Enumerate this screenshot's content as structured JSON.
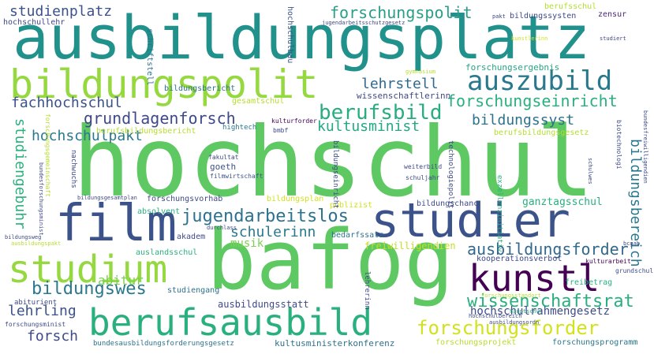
{
  "words": [
    {
      "text": "hochschul",
      "color": "#5ec962"
    },
    {
      "text": "ausbildungsplatz",
      "color": "#21918c"
    },
    {
      "text": "bafog",
      "color": "#5ec962"
    },
    {
      "text": "bildungspolit",
      "color": "#95d840"
    },
    {
      "text": "studier",
      "color": "#3b528b"
    },
    {
      "text": "film",
      "color": "#3b528b"
    },
    {
      "text": "studium",
      "color": "#95d840"
    },
    {
      "text": "kunstl",
      "color": "#440154"
    },
    {
      "text": "berufsausbild",
      "color": "#2ab07f"
    },
    {
      "text": "auszubild",
      "color": "#2a788e"
    },
    {
      "text": "berufsbild",
      "color": "#27ad81"
    },
    {
      "text": "forschungsforder",
      "color": "#d2e21b"
    },
    {
      "text": "forschungseinricht",
      "color": "#2ab07f"
    },
    {
      "text": "jugendarbeitslos",
      "color": "#2c728e"
    },
    {
      "text": "bildungswes",
      "color": "#2a788e"
    },
    {
      "text": "wissenschaftsrat",
      "color": "#2ab07f"
    },
    {
      "text": "ausbildungsforder",
      "color": "#31688e"
    },
    {
      "text": "forschungspolit",
      "color": "#2a9e89"
    },
    {
      "text": "grundlagenforsch",
      "color": "#3e4a89"
    },
    {
      "text": "kultusminist",
      "color": "#22a884"
    },
    {
      "text": "bildungssyst",
      "color": "#2c728e"
    },
    {
      "text": "schulerinn",
      "color": "#2a788e"
    },
    {
      "text": "studienplatz",
      "color": "#3b528b"
    },
    {
      "text": "fachhochschul",
      "color": "#3b528b"
    },
    {
      "text": "lehrstell",
      "color": "#31688e"
    },
    {
      "text": "hochschulpakt",
      "color": "#2a788e"
    },
    {
      "text": "studiengebuhr",
      "color": "#2ab07f"
    },
    {
      "text": "bildungsbereich",
      "color": "#2a788e"
    },
    {
      "text": "abitur",
      "color": "#7ad151"
    },
    {
      "text": "lehrling",
      "color": "#3b528b"
    },
    {
      "text": "forsch",
      "color": "#3e4a89"
    },
    {
      "text": "musik",
      "color": "#7ad151"
    },
    {
      "text": "hochschulrahmengesetz",
      "color": "#3e4a89"
    },
    {
      "text": "freiwilligendien",
      "color": "#c2df23"
    },
    {
      "text": "ausbildungsstatt",
      "color": "#3e4a89"
    },
    {
      "text": "bundesausbildungsforderungsgesetz",
      "color": "#2c728e"
    },
    {
      "text": "kultusministerkonferenz",
      "color": "#2c728e"
    },
    {
      "text": "forschungsprojekt",
      "color": "#b5de2b"
    },
    {
      "text": "forschungsprogramm",
      "color": "#2a788e"
    },
    {
      "text": "forschungsergebnis",
      "color": "#22a884"
    },
    {
      "text": "bildungssysten",
      "color": "#3e4a89"
    },
    {
      "text": "berufsschul",
      "color": "#b5de2b"
    },
    {
      "text": "zensur",
      "color": "#482878"
    },
    {
      "text": "wissenschaftlerinn",
      "color": "#3e4a89"
    },
    {
      "text": "hochschullehr",
      "color": "#3e4a89"
    },
    {
      "text": "hochschulbau",
      "color": "#3b528b"
    },
    {
      "text": "schriftstell",
      "color": "#2c728e"
    },
    {
      "text": "bildungsbericht",
      "color": "#2c728e"
    },
    {
      "text": "gesamtschul",
      "color": "#b5de2b"
    },
    {
      "text": "berufsbildungsbericht",
      "color": "#b5de2b"
    },
    {
      "text": "berufsbildungsgesetz",
      "color": "#b5de2b"
    },
    {
      "text": "hightech",
      "color": "#2a788e"
    },
    {
      "text": "kulturforder",
      "color": "#440154"
    },
    {
      "text": "bmbf",
      "color": "#3e4a89"
    },
    {
      "text": "fakultat",
      "color": "#3e4a89"
    },
    {
      "text": "goeth",
      "color": "#3b528b"
    },
    {
      "text": "filmwirtschaft",
      "color": "#3b528b"
    },
    {
      "text": "nachwuchs",
      "color": "#3e4a89"
    },
    {
      "text": "forschungsgemeinschaft",
      "color": "#b5de2b"
    },
    {
      "text": "forschungsvorhab",
      "color": "#3e4a89"
    },
    {
      "text": "bildungsplan",
      "color": "#d2e21b"
    },
    {
      "text": "publizist",
      "color": "#d2e21b"
    },
    {
      "text": "bildungschanc",
      "color": "#3e4a89"
    },
    {
      "text": "ganztagsschul",
      "color": "#2ab07f"
    },
    {
      "text": "bedarfssatz",
      "color": "#2c728e"
    },
    {
      "text": "absolvent",
      "color": "#2ab07f"
    },
    {
      "text": "akadem",
      "color": "#3e4a89"
    },
    {
      "text": "auslandsschul",
      "color": "#2ab07f"
    },
    {
      "text": "studiengang",
      "color": "#2c728e"
    },
    {
      "text": "abiturient",
      "color": "#3e4a89"
    },
    {
      "text": "kooperationsverbot",
      "color": "#3e4a89"
    },
    {
      "text": "kulturarbeit",
      "color": "#440154"
    },
    {
      "text": "grundschul",
      "color": "#3e4a89"
    },
    {
      "text": "freibetrag",
      "color": "#2ab07f"
    },
    {
      "text": "bcgab",
      "color": "#3e4a89"
    },
    {
      "text": "bildungsgesamtplan",
      "color": "#3e4a89"
    },
    {
      "text": "bildungsweg",
      "color": "#3e4a89"
    },
    {
      "text": "forschungsminist",
      "color": "#3e4a89"
    },
    {
      "text": "lehrerinn",
      "color": "#3e4a89"
    },
    {
      "text": "weiterbild",
      "color": "#3e4a89"
    },
    {
      "text": "schuljahr",
      "color": "#3e4a89"
    },
    {
      "text": "technologiepolit",
      "color": "#3e4a89"
    },
    {
      "text": "exzellenzinitiativ",
      "color": "#2ab07f"
    },
    {
      "text": "biotechnologi",
      "color": "#3e4a89"
    },
    {
      "text": "bundesfreiwilligendien",
      "color": "#3e4a89"
    },
    {
      "text": "schulwes",
      "color": "#3e4a89"
    },
    {
      "text": "jugendarbeitsschutzgesetz",
      "color": "#3e4a89"
    },
    {
      "text": "pakt",
      "color": "#3e4a89"
    },
    {
      "text": "kunstlerinn",
      "color": "#d2e21b"
    },
    {
      "text": "studiert",
      "color": "#3e4a89"
    },
    {
      "text": "gymnasium",
      "color": "#b5de2b"
    },
    {
      "text": "bildungseinricht",
      "color": "#3e4a89"
    },
    {
      "text": "durchlass",
      "color": "#3e4a89"
    },
    {
      "text": "hauptschul",
      "color": "#2ab07f"
    },
    {
      "text": "hochschulbereich",
      "color": "#3e4a89"
    },
    {
      "text": "ausbildungsordn",
      "color": "#3e4a89"
    },
    {
      "text": "forschungsstandort",
      "color": "#b5de2b"
    },
    {
      "text": "ausbildungspakt",
      "color": "#b5de2b"
    },
    {
      "text": "bundesforschungsminist",
      "color": "#3e4a89"
    }
  ]
}
